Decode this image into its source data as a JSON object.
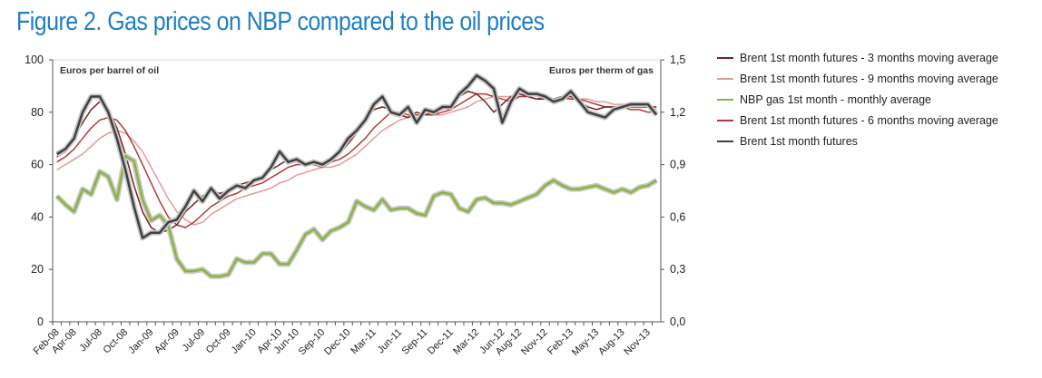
{
  "title": "Figure 2. Gas prices on NBP compared to the oil prices",
  "chart_data": {
    "type": "line",
    "left_axis": {
      "label": "Euros per barrel of oil",
      "min": 0,
      "max": 100,
      "ticks": [
        "0",
        "20",
        "40",
        "60",
        "80",
        "100"
      ]
    },
    "right_axis": {
      "label": "Euros per therm of gas",
      "min": 0,
      "max": 1.5,
      "ticks": [
        "0,0",
        "0,3",
        "0,6",
        "0,9",
        "1,2",
        "1,5"
      ]
    },
    "x_tick_labels": [
      "Feb-08",
      "Apr-08",
      "Jul-08",
      "Oct-08",
      "Jan-09",
      "Apr-09",
      "Jul-09",
      "Oct-09",
      "Jan-10",
      "Apr-10",
      "Jun-10",
      "Sep-10",
      "Dec-10",
      "Mar-11",
      "Jun-11",
      "Sep-11",
      "Dec-11",
      "Mar-12",
      "Jun-12",
      "Aug-12",
      "Nov-12",
      "Feb-13",
      "May-13",
      "Aug-13",
      "Nov-13"
    ],
    "x": [
      "Feb-08",
      "Mar-08",
      "Apr-08",
      "May-08",
      "Jun-08",
      "Jul-08",
      "Aug-08",
      "Sep-08",
      "Oct-08",
      "Nov-08",
      "Dec-08",
      "Jan-09",
      "Feb-09",
      "Mar-09",
      "Apr-09",
      "May-09",
      "Jun-09",
      "Jul-09",
      "Aug-09",
      "Sep-09",
      "Oct-09",
      "Nov-09",
      "Dec-09",
      "Jan-10",
      "Feb-10",
      "Mar-10",
      "Apr-10",
      "May-10",
      "Jun-10",
      "Jul-10",
      "Aug-10",
      "Sep-10",
      "Oct-10",
      "Nov-10",
      "Dec-10",
      "Jan-11",
      "Feb-11",
      "Mar-11",
      "Apr-11",
      "May-11",
      "Jun-11",
      "Jul-11",
      "Aug-11",
      "Sep-11",
      "Oct-11",
      "Nov-11",
      "Dec-11",
      "Jan-12",
      "Feb-12",
      "Mar-12",
      "Apr-12",
      "May-12",
      "Jun-12",
      "Jul-12",
      "Aug-12",
      "Sep-12",
      "Oct-12",
      "Nov-12",
      "Dec-12",
      "Jan-13",
      "Feb-13",
      "Mar-13",
      "Apr-13",
      "May-13",
      "Jun-13",
      "Jul-13",
      "Aug-13",
      "Sep-13",
      "Oct-13",
      "Nov-13",
      "Dec-13"
    ],
    "series": [
      {
        "name": "Brent 1st month futures - 3 months moving average",
        "axis": "left",
        "color": "#7b1f1f",
        "values": [
          63,
          65,
          70,
          76,
          81,
          84,
          81,
          74,
          64,
          52,
          42,
          36,
          34,
          35,
          37,
          42,
          45,
          48,
          50,
          49,
          50,
          52,
          53,
          54,
          55,
          58,
          60,
          62,
          61,
          60,
          60,
          59,
          61,
          64,
          68,
          72,
          77,
          81,
          82,
          81,
          79,
          78,
          80,
          79,
          80,
          81,
          83,
          86,
          88,
          87,
          84,
          80,
          83,
          86,
          87,
          86,
          85,
          85,
          85,
          86,
          86,
          84,
          82,
          81,
          82,
          82,
          82,
          82,
          82,
          82,
          82
        ]
      },
      {
        "name": "Brent 1st month futures - 9 months moving average",
        "axis": "left",
        "color": "#e49a9a",
        "values": [
          58,
          60,
          62,
          64,
          67,
          70,
          72,
          73,
          72,
          69,
          65,
          59,
          53,
          47,
          42,
          39,
          37,
          38,
          41,
          43,
          45,
          47,
          48,
          49,
          50,
          51,
          53,
          54,
          56,
          57,
          58,
          59,
          59,
          60,
          62,
          64,
          67,
          70,
          73,
          75,
          77,
          78,
          79,
          79,
          79,
          79,
          80,
          81,
          82,
          84,
          85,
          86,
          86,
          86,
          86,
          86,
          85,
          85,
          84,
          85,
          85,
          85,
          85,
          84,
          84,
          83,
          83,
          83,
          82,
          82,
          81
        ]
      },
      {
        "name": "NBP gas 1st month - monthly average",
        "axis": "right",
        "color": "#8db340",
        "values": [
          0.72,
          0.67,
          0.63,
          0.76,
          0.73,
          0.86,
          0.83,
          0.7,
          0.95,
          0.92,
          0.7,
          0.58,
          0.61,
          0.55,
          0.36,
          0.29,
          0.29,
          0.3,
          0.26,
          0.26,
          0.27,
          0.36,
          0.34,
          0.34,
          0.39,
          0.39,
          0.33,
          0.33,
          0.41,
          0.5,
          0.53,
          0.47,
          0.52,
          0.54,
          0.57,
          0.69,
          0.66,
          0.64,
          0.7,
          0.64,
          0.65,
          0.65,
          0.62,
          0.61,
          0.72,
          0.74,
          0.73,
          0.65,
          0.63,
          0.7,
          0.71,
          0.68,
          0.68,
          0.67,
          0.69,
          0.71,
          0.73,
          0.78,
          0.81,
          0.78,
          0.76,
          0.76,
          0.77,
          0.78,
          0.76,
          0.74,
          0.76,
          0.74,
          0.77,
          0.78,
          0.81
        ]
      },
      {
        "name": "Brent 1st month futures - 6 months moving average",
        "axis": "left",
        "color": "#b23a3a",
        "values": [
          61,
          63,
          66,
          70,
          74,
          77,
          78,
          77,
          73,
          67,
          60,
          53,
          46,
          40,
          37,
          36,
          38,
          41,
          44,
          46,
          48,
          49,
          51,
          52,
          53,
          55,
          57,
          59,
          60,
          60,
          61,
          61,
          61,
          62,
          64,
          67,
          70,
          74,
          77,
          80,
          80,
          79,
          79,
          79,
          79,
          80,
          81,
          83,
          85,
          87,
          87,
          86,
          85,
          84,
          86,
          86,
          85,
          86,
          85,
          86,
          85,
          85,
          84,
          83,
          82,
          82,
          82,
          81,
          81,
          80,
          80
        ]
      },
      {
        "name": "Brent 1st month futures",
        "axis": "left",
        "color": "#404040",
        "values": [
          64,
          66,
          70,
          80,
          86,
          86,
          80,
          70,
          58,
          44,
          32,
          34,
          34,
          38,
          39,
          44,
          50,
          46,
          51,
          47,
          50,
          52,
          51,
          54,
          55,
          59,
          65,
          61,
          62,
          60,
          61,
          60,
          62,
          65,
          70,
          73,
          77,
          83,
          86,
          80,
          79,
          82,
          76,
          81,
          80,
          82,
          82,
          87,
          90,
          94,
          92,
          89,
          76,
          84,
          89,
          87,
          87,
          86,
          84,
          85,
          88,
          84,
          80,
          79,
          78,
          81,
          82,
          83,
          83,
          83,
          79
        ]
      }
    ],
    "legend_position": "right",
    "grid": false
  }
}
